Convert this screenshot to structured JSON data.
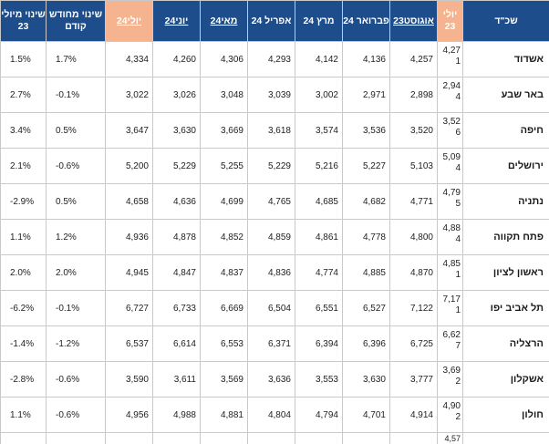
{
  "table": {
    "headers": {
      "change_yoy": "שינוי מיולי 23",
      "change_prev": "שינוי מחודש קודם",
      "jul24": "יולי24",
      "jun24": "יוני24",
      "may24": "מאי24",
      "apr24": "אפריל 24",
      "mar24": "מרץ 24",
      "feb24": "פברואר 24",
      "aug23": "אוגוסט23",
      "jul23": "יולי 23",
      "city": "שכ\"ד"
    },
    "rows": [
      {
        "city": "אשדוד",
        "jul23": "4,27\n1",
        "aug23": "4,257",
        "feb24": "4,136",
        "mar24": "4,142",
        "apr24": "4,293",
        "may24": "4,306",
        "jun24": "4,260",
        "jul24": "4,334",
        "change_prev": "1.7%",
        "change_yoy": "1.5%"
      },
      {
        "city": "באר שבע",
        "jul23": "2,94\n4",
        "aug23": "2,898",
        "feb24": "2,971",
        "mar24": "3,002",
        "apr24": "3,039",
        "may24": "3,048",
        "jun24": "3,026",
        "jul24": "3,022",
        "change_prev": "-0.1%",
        "change_yoy": "2.7%"
      },
      {
        "city": "חיפה",
        "jul23": "3,52\n6",
        "aug23": "3,520",
        "feb24": "3,536",
        "mar24": "3,574",
        "apr24": "3,618",
        "may24": "3,669",
        "jun24": "3,630",
        "jul24": "3,647",
        "change_prev": "0.5%",
        "change_yoy": "3.4%"
      },
      {
        "city": "ירושלים",
        "jul23": "5,09\n4",
        "aug23": "5,103",
        "feb24": "5,227",
        "mar24": "5,216",
        "apr24": "5,229",
        "may24": "5,255",
        "jun24": "5,229",
        "jul24": "5,200",
        "change_prev": "-0.6%",
        "change_yoy": "2.1%"
      },
      {
        "city": "נתניה",
        "jul23": "4,79\n5",
        "aug23": "4,771",
        "feb24": "4,682",
        "mar24": "4,685",
        "apr24": "4,765",
        "may24": "4,699",
        "jun24": "4,636",
        "jul24": "4,658",
        "change_prev": "0.5%",
        "change_yoy": "-2.9%"
      },
      {
        "city": "פתח תקווה",
        "jul23": "4,88\n4",
        "aug23": "4,800",
        "feb24": "4,778",
        "mar24": "4,861",
        "apr24": "4,859",
        "may24": "4,852",
        "jun24": "4,878",
        "jul24": "4,936",
        "change_prev": "1.2%",
        "change_yoy": "1.1%"
      },
      {
        "city": "ראשון לציון",
        "jul23": "4,85\n1",
        "aug23": "4,870",
        "feb24": "4,885",
        "mar24": "4,774",
        "apr24": "4,836",
        "may24": "4,837",
        "jun24": "4,847",
        "jul24": "4,945",
        "change_prev": "2.0%",
        "change_yoy": "2.0%"
      },
      {
        "city": "תל אביב יפו",
        "jul23": "7,17\n1",
        "aug23": "7,122",
        "feb24": "6,527",
        "mar24": "6,551",
        "apr24": "6,504",
        "may24": "6,669",
        "jun24": "6,733",
        "jul24": "6,727",
        "change_prev": "-0.1%",
        "change_yoy": "-6.2%"
      },
      {
        "city": "הרצליה",
        "jul23": "6,62\n7",
        "aug23": "6,725",
        "feb24": "6,396",
        "mar24": "6,394",
        "apr24": "6,371",
        "may24": "6,553",
        "jun24": "6,614",
        "jul24": "6,537",
        "change_prev": "-1.2%",
        "change_yoy": "-1.4%"
      },
      {
        "city": "אשקלון",
        "jul23": "3,69\n2",
        "aug23": "3,777",
        "feb24": "3,630",
        "mar24": "3,553",
        "apr24": "3,636",
        "may24": "3,569",
        "jun24": "3,611",
        "jul24": "3,590",
        "change_prev": "-0.6%",
        "change_yoy": "-2.8%"
      },
      {
        "city": "חולון",
        "jul23": "4,90\n2",
        "aug23": "4,914",
        "feb24": "4,701",
        "mar24": "4,794",
        "apr24": "4,804",
        "may24": "4,881",
        "jun24": "4,988",
        "jul24": "4,956",
        "change_prev": "-0.6%",
        "change_yoy": "1.1%"
      }
    ],
    "partial_row": {
      "jul23": "4,57"
    }
  },
  "colors": {
    "header_bg": "#1e4d8b",
    "header_highlight_bg": "#f5b48f",
    "header_text": "#ffffff",
    "border": "#c9c9c9"
  }
}
